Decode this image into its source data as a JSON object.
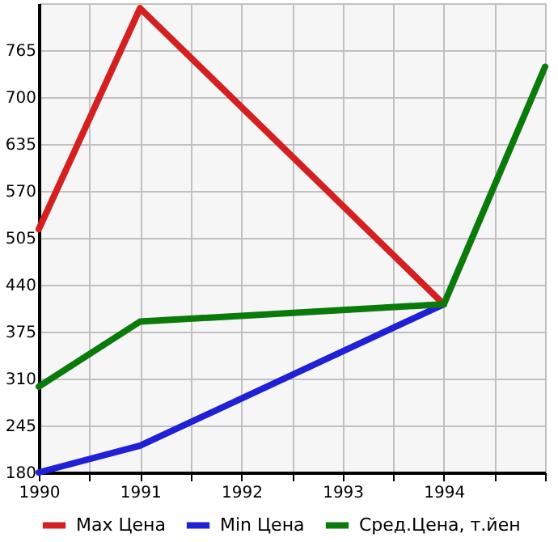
{
  "chart_data": {
    "type": "line",
    "x": [
      1990,
      1991,
      1994,
      1995
    ],
    "series": [
      {
        "name": "Max Цена",
        "color": "#d42020",
        "values": [
          517,
          823,
          413,
          null
        ]
      },
      {
        "name": "Min Цена",
        "color": "#2020d4",
        "values": [
          180,
          217,
          413,
          null
        ]
      },
      {
        "name": "Сред.Цена, т.йен",
        "color": "#0a7a0a",
        "values": [
          299,
          389,
          413,
          742
        ]
      }
    ],
    "xlim": [
      1990,
      1995
    ],
    "xticks": [
      1990,
      {
        "value": 1990.5,
        "label": null
      },
      1991,
      {
        "value": 1991.5,
        "label": null
      },
      1992,
      {
        "value": 1992.5,
        "label": null
      },
      1993,
      {
        "value": 1993.5,
        "label": null
      },
      1994,
      {
        "value": 1994.5,
        "label": null
      },
      {
        "value": 1995,
        "label": null
      }
    ],
    "ylim": [
      180,
      830
    ],
    "yticks": [
      180,
      245,
      310,
      375,
      440,
      505,
      570,
      635,
      700,
      765,
      {
        "value": 830,
        "label": null
      }
    ],
    "grid": true,
    "legend": "bottom",
    "marker": "none",
    "line_style": "solid"
  }
}
